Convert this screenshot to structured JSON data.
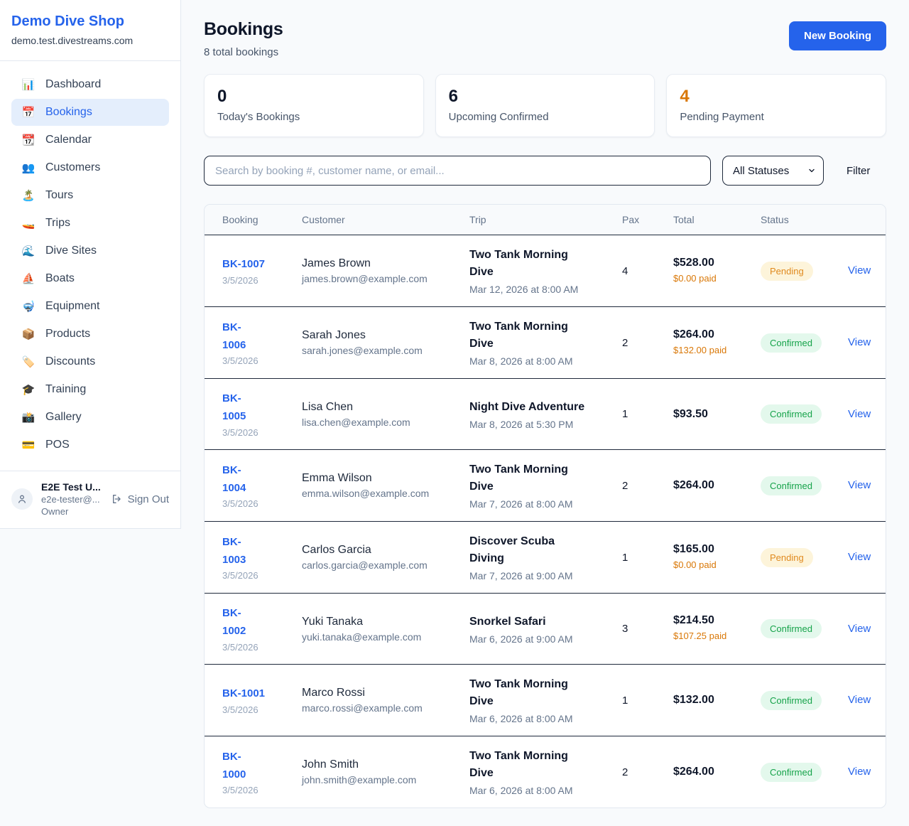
{
  "colors": {
    "brand_blue": "#2563eb",
    "pending_orange_text": "#e08a1e",
    "pending_badge_bg": "#fdf4da",
    "confirmed_green_text": "#16a34a",
    "confirmed_badge_bg": "#e3f8ec",
    "paid_orange": "#d97706",
    "stat_orange": "#d97706",
    "link_blue": "#2563eb"
  },
  "sidebar": {
    "brand": {
      "name": "Demo Dive Shop",
      "domain": "demo.test.divestreams.com"
    },
    "items": [
      {
        "icon": "📊",
        "icon_name": "bar-chart-icon",
        "label": "Dashboard",
        "active": false
      },
      {
        "icon": "📅",
        "icon_name": "calendar-icon",
        "label": "Bookings",
        "active": true
      },
      {
        "icon": "📆",
        "icon_name": "tear-off-calendar-icon",
        "label": "Calendar",
        "active": false
      },
      {
        "icon": "👥",
        "icon_name": "people-icon",
        "label": "Customers",
        "active": false
      },
      {
        "icon": "🏝️",
        "icon_name": "island-icon",
        "label": "Tours",
        "active": false
      },
      {
        "icon": "🚤",
        "icon_name": "speedboat-icon",
        "label": "Trips",
        "active": false
      },
      {
        "icon": "🌊",
        "icon_name": "wave-icon",
        "label": "Dive Sites",
        "active": false
      },
      {
        "icon": "⛵",
        "icon_name": "sailboat-icon",
        "label": "Boats",
        "active": false
      },
      {
        "icon": "🤿",
        "icon_name": "diving-mask-icon",
        "label": "Equipment",
        "active": false
      },
      {
        "icon": "📦",
        "icon_name": "package-icon",
        "label": "Products",
        "active": false
      },
      {
        "icon": "🏷️",
        "icon_name": "tag-icon",
        "label": "Discounts",
        "active": false
      },
      {
        "icon": "🎓",
        "icon_name": "graduation-cap-icon",
        "label": "Training",
        "active": false
      },
      {
        "icon": "📸",
        "icon_name": "camera-icon",
        "label": "Gallery",
        "active": false
      },
      {
        "icon": "💳",
        "icon_name": "credit-card-icon",
        "label": "POS",
        "active": false
      }
    ],
    "user": {
      "name": "E2E Test U...",
      "email": "e2e-tester@...",
      "role": "Owner",
      "sign_out_label": "Sign Out"
    }
  },
  "header": {
    "title": "Bookings",
    "subtitle": "8 total bookings",
    "new_booking_label": "New Booking"
  },
  "stats": [
    {
      "value": "0",
      "label": "Today's Bookings",
      "orange": false
    },
    {
      "value": "6",
      "label": "Upcoming Confirmed",
      "orange": false
    },
    {
      "value": "4",
      "label": "Pending Payment",
      "orange": true
    }
  ],
  "filters": {
    "search_placeholder": "Search by booking #, customer name, or email...",
    "status_selected": "All Statuses",
    "filter_label": "Filter"
  },
  "table": {
    "columns": [
      "Booking",
      "Customer",
      "Trip",
      "Pax",
      "Total",
      "Status"
    ],
    "view_label": "View",
    "rows": [
      {
        "id": "BK-1007",
        "id_wrap": false,
        "date": "3/5/2026",
        "customer": "James Brown",
        "email": "james.brown@example.com",
        "trip": "Two Tank Morning Dive",
        "trip_datetime": "Mar 12, 2026 at 8:00 AM",
        "pax": "4",
        "total": "$528.00",
        "paid": "$0.00 paid",
        "status": "Pending"
      },
      {
        "id": "BK-1006",
        "id_wrap": true,
        "date": "3/5/2026",
        "customer": "Sarah Jones",
        "email": "sarah.jones@example.com",
        "trip": "Two Tank Morning Dive",
        "trip_datetime": "Mar 8, 2026 at 8:00 AM",
        "pax": "2",
        "total": "$264.00",
        "paid": "$132.00 paid",
        "status": "Confirmed"
      },
      {
        "id": "BK-1005",
        "id_wrap": true,
        "date": "3/5/2026",
        "customer": "Lisa Chen",
        "email": "lisa.chen@example.com",
        "trip": "Night Dive Adventure",
        "trip_datetime": "Mar 8, 2026 at 5:30 PM",
        "pax": "1",
        "total": "$93.50",
        "paid": "",
        "status": "Confirmed"
      },
      {
        "id": "BK-1004",
        "id_wrap": true,
        "date": "3/5/2026",
        "customer": "Emma Wilson",
        "email": "emma.wilson@example.com",
        "trip": "Two Tank Morning Dive",
        "trip_datetime": "Mar 7, 2026 at 8:00 AM",
        "pax": "2",
        "total": "$264.00",
        "paid": "",
        "status": "Confirmed"
      },
      {
        "id": "BK-1003",
        "id_wrap": true,
        "date": "3/5/2026",
        "customer": "Carlos Garcia",
        "email": "carlos.garcia@example.com",
        "trip": "Discover Scuba Diving",
        "trip_datetime": "Mar 7, 2026 at 9:00 AM",
        "pax": "1",
        "total": "$165.00",
        "paid": "$0.00 paid",
        "status": "Pending"
      },
      {
        "id": "BK-1002",
        "id_wrap": true,
        "date": "3/5/2026",
        "customer": "Yuki Tanaka",
        "email": "yuki.tanaka@example.com",
        "trip": "Snorkel Safari",
        "trip_datetime": "Mar 6, 2026 at 9:00 AM",
        "pax": "3",
        "total": "$214.50",
        "paid": "$107.25 paid",
        "status": "Confirmed"
      },
      {
        "id": "BK-1001",
        "id_wrap": false,
        "date": "3/5/2026",
        "customer": "Marco Rossi",
        "email": "marco.rossi@example.com",
        "trip": "Two Tank Morning Dive",
        "trip_datetime": "Mar 6, 2026 at 8:00 AM",
        "pax": "1",
        "total": "$132.00",
        "paid": "",
        "status": "Confirmed"
      },
      {
        "id": "BK-1000",
        "id_wrap": true,
        "date": "3/5/2026",
        "customer": "John Smith",
        "email": "john.smith@example.com",
        "trip": "Two Tank Morning Dive",
        "trip_datetime": "Mar 6, 2026 at 8:00 AM",
        "pax": "2",
        "total": "$264.00",
        "paid": "",
        "status": "Confirmed"
      }
    ]
  }
}
